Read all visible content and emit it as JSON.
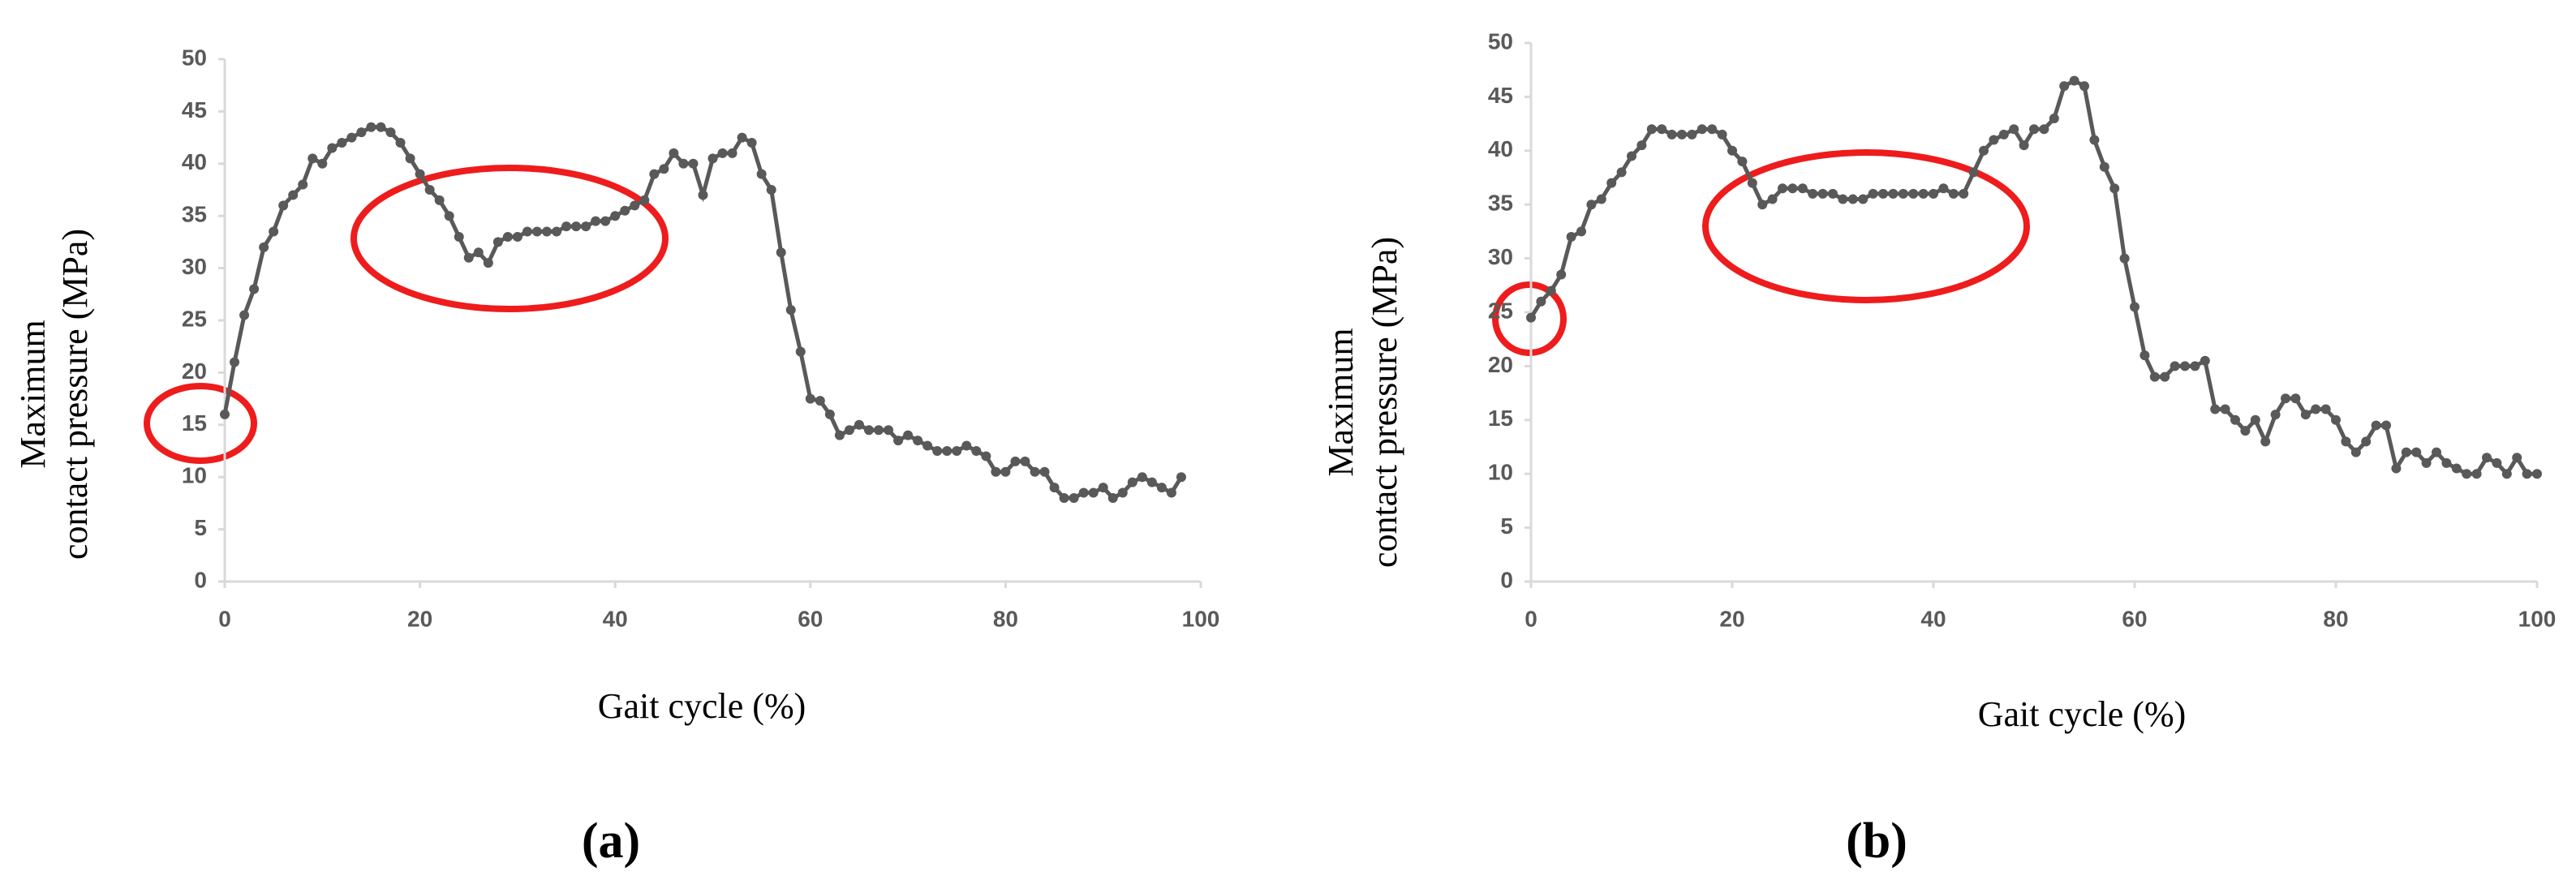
{
  "chart_data": [
    {
      "type": "line",
      "label": "(a)",
      "xlabel": "Gait cycle (%)",
      "ylabel": [
        "Maximum",
        "contact pressure (MPa)"
      ],
      "xlim": [
        0,
        100
      ],
      "xticks": [
        0,
        20,
        40,
        60,
        80,
        100
      ],
      "ylim": [
        0,
        50
      ],
      "yticks": [
        0,
        5,
        10,
        15,
        20,
        25,
        30,
        35,
        40,
        45,
        50
      ],
      "series": [
        {
          "color": "#595959",
          "x": [
            0,
            1,
            2,
            3,
            4,
            5,
            6,
            7,
            8,
            9,
            10,
            11,
            12,
            13,
            14,
            15,
            16,
            17,
            18,
            19,
            20,
            21,
            22,
            23,
            24,
            25,
            26,
            27,
            28,
            29,
            30,
            31,
            32,
            33,
            34,
            35,
            36,
            37,
            38,
            39,
            40,
            41,
            42,
            43,
            44,
            45,
            46,
            47,
            48,
            49,
            50,
            51,
            52,
            53,
            54,
            55,
            56,
            57,
            58,
            59,
            60,
            61,
            62,
            63,
            64,
            65,
            66,
            67,
            68,
            69,
            70,
            71,
            72,
            73,
            74,
            75,
            76,
            77,
            78,
            79,
            80,
            81,
            82,
            83,
            84,
            85,
            86,
            87,
            88,
            89,
            90,
            91,
            92,
            93,
            94,
            95,
            96,
            97,
            98
          ],
          "values": [
            16,
            21,
            25.5,
            28,
            32,
            33.5,
            36,
            37,
            38,
            40.5,
            40,
            41.5,
            42,
            42.5,
            43,
            43.5,
            43.5,
            43,
            42,
            40.5,
            39,
            37.5,
            36.5,
            35,
            33,
            31,
            31.5,
            30.5,
            32.5,
            33,
            33,
            33.5,
            33.5,
            33.5,
            33.5,
            34,
            34,
            34,
            34.5,
            34.5,
            35,
            35.5,
            36,
            36.5,
            39,
            39.5,
            41,
            40,
            40,
            37,
            40.5,
            41,
            41,
            42.5,
            42,
            39,
            37.5,
            31.5,
            26,
            22,
            17.5,
            17.3,
            16,
            14,
            14.5,
            15,
            14.5,
            14.5,
            14.5,
            13.5,
            14,
            13.5,
            13,
            12.5,
            12.5,
            12.5,
            13,
            12.5,
            12,
            10.5,
            10.5,
            11.5,
            11.5,
            10.5,
            10.5,
            9,
            8,
            8,
            8.5,
            8.5,
            9,
            8,
            8.5,
            9.5,
            10,
            9.5,
            9,
            8.5,
            10
          ]
        }
      ]
    },
    {
      "type": "line",
      "label": "(b)",
      "xlabel": "Gait cycle (%)",
      "ylabel": [
        "Maximum",
        "contact pressure (MPa)"
      ],
      "xlim": [
        0,
        100
      ],
      "xticks": [
        0,
        20,
        40,
        60,
        80,
        100
      ],
      "ylim": [
        0,
        50
      ],
      "yticks": [
        0,
        5,
        10,
        15,
        20,
        25,
        30,
        35,
        40,
        45,
        50
      ],
      "series": [
        {
          "color": "#595959",
          "x": [
            0,
            1,
            2,
            3,
            4,
            5,
            6,
            7,
            8,
            9,
            10,
            11,
            12,
            13,
            14,
            15,
            16,
            17,
            18,
            19,
            20,
            21,
            22,
            23,
            24,
            25,
            26,
            27,
            28,
            29,
            30,
            31,
            32,
            33,
            34,
            35,
            36,
            37,
            38,
            39,
            40,
            41,
            42,
            43,
            44,
            45,
            46,
            47,
            48,
            49,
            50,
            51,
            52,
            53,
            54,
            55,
            56,
            57,
            58,
            59,
            60,
            61,
            62,
            63,
            64,
            65,
            66,
            67,
            68,
            69,
            70,
            71,
            72,
            73,
            74,
            75,
            76,
            77,
            78,
            79,
            80,
            81,
            82,
            83,
            84,
            85,
            86,
            87,
            88,
            89,
            90,
            91,
            92,
            93,
            94,
            95,
            96,
            97,
            98,
            99,
            100
          ],
          "values": [
            24.5,
            26,
            27,
            28.5,
            32,
            32.5,
            35,
            35.5,
            37,
            38,
            39.5,
            40.5,
            42,
            42,
            41.5,
            41.5,
            41.5,
            42,
            42,
            41.5,
            40,
            39,
            37,
            35,
            35.5,
            36.5,
            36.5,
            36.5,
            36,
            36,
            36,
            35.5,
            35.5,
            35.5,
            36,
            36,
            36,
            36,
            36,
            36,
            36,
            36.5,
            36,
            36,
            38,
            40,
            41,
            41.5,
            42,
            40.5,
            42,
            42,
            43,
            46,
            46.5,
            46,
            41,
            38.5,
            36.5,
            30,
            25.5,
            21,
            19,
            19,
            20,
            20,
            20,
            20.5,
            16,
            16,
            15,
            14,
            15,
            13,
            15.5,
            17,
            17,
            15.5,
            16,
            16,
            15,
            13,
            12,
            13,
            14.5,
            14.5,
            10.5,
            12,
            12,
            11,
            12,
            11,
            10.5,
            10,
            10,
            11.5,
            11,
            10,
            11.5,
            10,
            10
          ]
        }
      ]
    }
  ]
}
